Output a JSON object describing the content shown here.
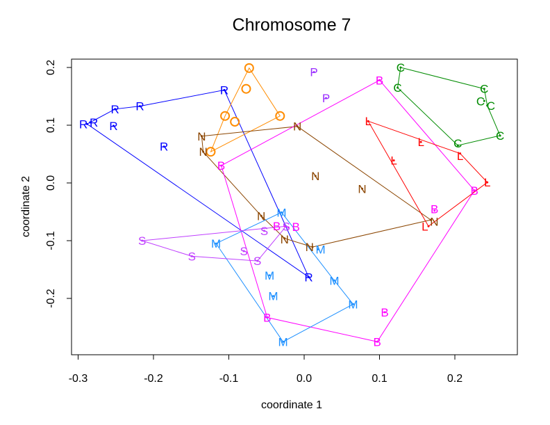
{
  "chart_data": {
    "type": "scatter",
    "title": "Chromosome 7",
    "xlabel": "coordinate 1",
    "ylabel": "coordinate 2",
    "xlim": [
      -0.31,
      0.28
    ],
    "ylim": [
      -0.297,
      0.215
    ],
    "xticks": [
      -0.3,
      -0.2,
      -0.1,
      0.0,
      0.1,
      0.2
    ],
    "xtick_labels": [
      "-0.3",
      "-0.2",
      "-0.1",
      "0.0",
      "0.1",
      "0.2"
    ],
    "yticks": [
      -0.2,
      -0.1,
      0.0,
      0.1,
      0.2
    ],
    "ytick_labels": [
      "-0.2",
      "-0.1",
      "0.0",
      "0.1",
      "0.2"
    ],
    "grid": false,
    "series": [
      {
        "name": "R",
        "color": "#0000FF",
        "points": [
          [
            -0.288,
            0.102
          ],
          [
            -0.284,
            0.105
          ],
          [
            -0.251,
            0.128
          ],
          [
            -0.218,
            0.133
          ],
          [
            -0.253,
            0.099
          ],
          [
            -0.186,
            0.063
          ],
          [
            -0.106,
            0.161
          ],
          [
            0.006,
            -0.163
          ]
        ],
        "hull": [
          0,
          2,
          3,
          6,
          7
        ]
      },
      {
        "name": "O",
        "color": "#FF8C00",
        "points": [
          [
            -0.073,
            0.199
          ],
          [
            -0.077,
            0.163
          ],
          [
            -0.105,
            0.116
          ],
          [
            -0.092,
            0.106
          ],
          [
            -0.032,
            0.116
          ],
          [
            -0.124,
            0.054
          ]
        ],
        "hull": [
          5,
          2,
          0,
          4
        ],
        "circle": true
      },
      {
        "name": "N",
        "color": "#8B4500",
        "points": [
          [
            -0.136,
            0.081
          ],
          [
            -0.134,
            0.054
          ],
          [
            -0.009,
            0.098
          ],
          [
            0.015,
            0.012
          ],
          [
            0.077,
            -0.01
          ],
          [
            -0.057,
            -0.057
          ],
          [
            -0.026,
            -0.096
          ],
          [
            0.011,
            -0.111
          ],
          [
            0.168,
            -0.064
          ]
        ],
        "hull": [
          0,
          2,
          8,
          7,
          6,
          5,
          1
        ]
      },
      {
        "name": "P",
        "color": "#9B30FF",
        "points": [
          [
            0.013,
            0.192
          ],
          [
            0.029,
            0.147
          ]
        ],
        "hull": []
      },
      {
        "name": "B",
        "color": "#FF00FF",
        "points": [
          [
            0.1,
            0.178
          ],
          [
            -0.11,
            0.03
          ],
          [
            0.173,
            -0.048
          ],
          [
            0.226,
            -0.013
          ],
          [
            -0.026,
            -0.075
          ],
          [
            -0.021,
            -0.077
          ],
          [
            -0.049,
            -0.233
          ],
          [
            0.107,
            -0.224
          ],
          [
            0.097,
            -0.275
          ]
        ],
        "hull": [
          1,
          0,
          3,
          8,
          6
        ]
      },
      {
        "name": "L",
        "color": "#FF0000",
        "points": [
          [
            0.085,
            0.107
          ],
          [
            0.155,
            0.071
          ],
          [
            0.119,
            0.039
          ],
          [
            0.207,
            0.051
          ],
          [
            0.243,
            0.001
          ],
          [
            0.165,
            -0.075
          ]
        ],
        "hull": [
          0,
          3,
          4,
          5
        ]
      },
      {
        "name": "C",
        "color": "#008B00",
        "points": [
          [
            0.128,
            0.2
          ],
          [
            0.124,
            0.165
          ],
          [
            0.239,
            0.163
          ],
          [
            0.239,
            0.142
          ],
          [
            0.243,
            0.134
          ],
          [
            0.26,
            0.082
          ],
          [
            0.204,
            0.065
          ]
        ],
        "hull": [
          0,
          2,
          4,
          5,
          6,
          1
        ]
      },
      {
        "name": "M",
        "color": "#1E90FF",
        "points": [
          [
            -0.03,
            -0.051
          ],
          [
            -0.117,
            -0.105
          ],
          [
            0.018,
            -0.115
          ],
          [
            -0.046,
            -0.16
          ],
          [
            -0.041,
            -0.196
          ],
          [
            0.04,
            -0.169
          ],
          [
            0.065,
            -0.21
          ],
          [
            -0.028,
            -0.275
          ]
        ],
        "hull": [
          0,
          5,
          6,
          7,
          1
        ]
      },
      {
        "name": "S",
        "color": "#BF3EFF",
        "points": [
          [
            -0.215,
            -0.1
          ],
          [
            -0.149,
            -0.127
          ],
          [
            -0.08,
            -0.118
          ],
          [
            -0.053,
            -0.083
          ],
          [
            -0.062,
            -0.135
          ],
          [
            -0.024,
            -0.075
          ]
        ],
        "hull": [
          0,
          5,
          4,
          1
        ]
      }
    ]
  }
}
